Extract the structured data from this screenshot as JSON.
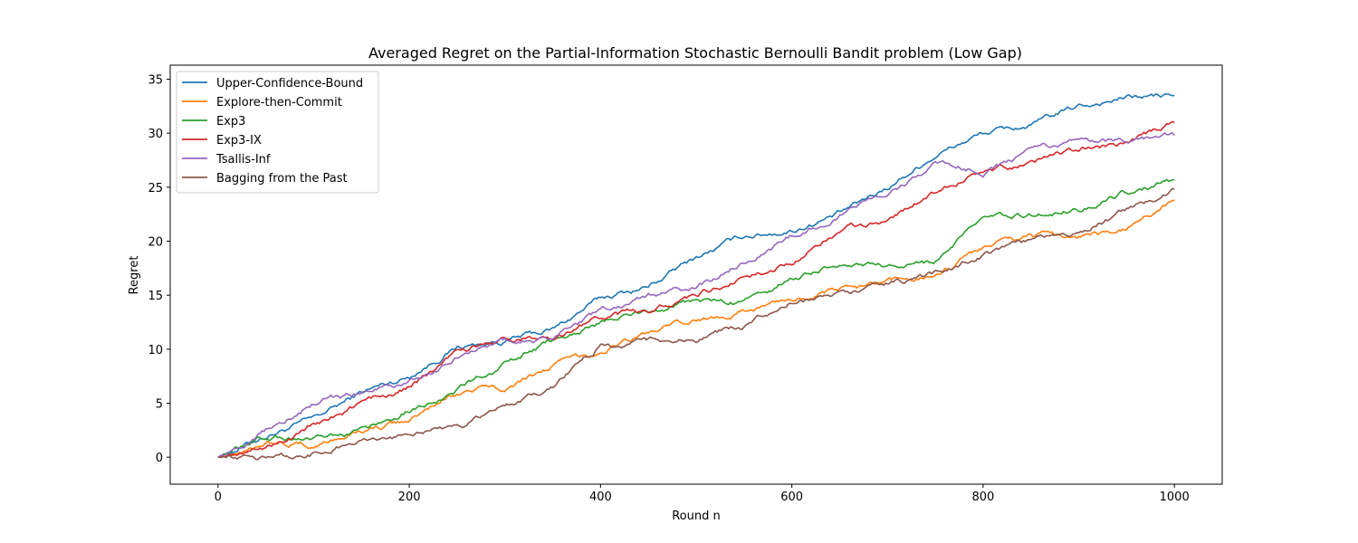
{
  "chart_data": {
    "type": "line",
    "title": "Averaged Regret on the Partial-Information Stochastic Bernoulli Bandit problem (Low Gap)",
    "xlabel": "Round n",
    "ylabel": "Regret",
    "xlim": [
      -50,
      1050
    ],
    "ylim": [
      -2.5,
      36.3
    ],
    "xticks": [
      0,
      200,
      400,
      600,
      800,
      1000
    ],
    "yticks": [
      0,
      5,
      10,
      15,
      20,
      25,
      30,
      35
    ],
    "xtick_labels": [
      "0",
      "200",
      "400",
      "600",
      "800",
      "1000"
    ],
    "ytick_labels": [
      "0",
      "5",
      "10",
      "15",
      "20",
      "25",
      "30",
      "35"
    ],
    "grid": false,
    "legend_position": "top-left",
    "x": [
      0,
      50,
      100,
      150,
      200,
      250,
      300,
      350,
      400,
      450,
      500,
      550,
      600,
      650,
      700,
      750,
      800,
      850,
      900,
      950,
      1000
    ],
    "series": [
      {
        "name": "Upper-Confidence-Bound",
        "color": "#1f77b4",
        "values": [
          0.0,
          2.0,
          3.5,
          6.0,
          7.5,
          10.2,
          10.8,
          11.8,
          14.7,
          15.8,
          18.5,
          20.5,
          21.0,
          22.5,
          25.0,
          28.0,
          30.0,
          30.7,
          32.5,
          33.3,
          33.5
        ]
      },
      {
        "name": "Explore-then-Commit",
        "color": "#ff7f0e",
        "values": [
          0.0,
          1.5,
          1.0,
          2.5,
          3.3,
          6.2,
          6.5,
          8.5,
          9.8,
          11.5,
          12.6,
          13.5,
          14.7,
          15.5,
          16.0,
          17.0,
          19.5,
          20.5,
          20.5,
          21.0,
          23.8
        ]
      },
      {
        "name": "Exp3",
        "color": "#2ca02c",
        "values": [
          0.0,
          2.0,
          1.5,
          2.3,
          4.5,
          6.2,
          8.5,
          10.8,
          12.5,
          13.5,
          14.5,
          14.2,
          16.5,
          18.0,
          17.5,
          18.0,
          22.0,
          22.5,
          23.0,
          24.5,
          25.7
        ]
      },
      {
        "name": "Exp3-IX",
        "color": "#d62728",
        "values": [
          0.0,
          1.0,
          3.0,
          5.0,
          6.5,
          9.5,
          11.0,
          11.0,
          13.0,
          13.5,
          15.0,
          16.5,
          18.0,
          21.0,
          22.0,
          24.5,
          26.5,
          27.2,
          28.5,
          29.0,
          31.0
        ]
      },
      {
        "name": "Tsallis-Inf",
        "color": "#9467bd",
        "values": [
          0.0,
          2.5,
          5.0,
          6.0,
          7.0,
          9.5,
          10.8,
          11.0,
          13.5,
          15.0,
          15.7,
          18.0,
          20.5,
          22.5,
          24.5,
          27.0,
          26.5,
          28.3,
          29.5,
          29.2,
          29.8
        ]
      },
      {
        "name": "Bagging from the Past",
        "color": "#8c564b",
        "values": [
          0.0,
          -0.2,
          0.5,
          1.5,
          2.0,
          2.8,
          4.5,
          6.5,
          10.2,
          10.8,
          11.0,
          12.0,
          14.5,
          15.2,
          16.0,
          17.0,
          18.8,
          20.0,
          20.8,
          22.8,
          24.8
        ]
      }
    ]
  }
}
